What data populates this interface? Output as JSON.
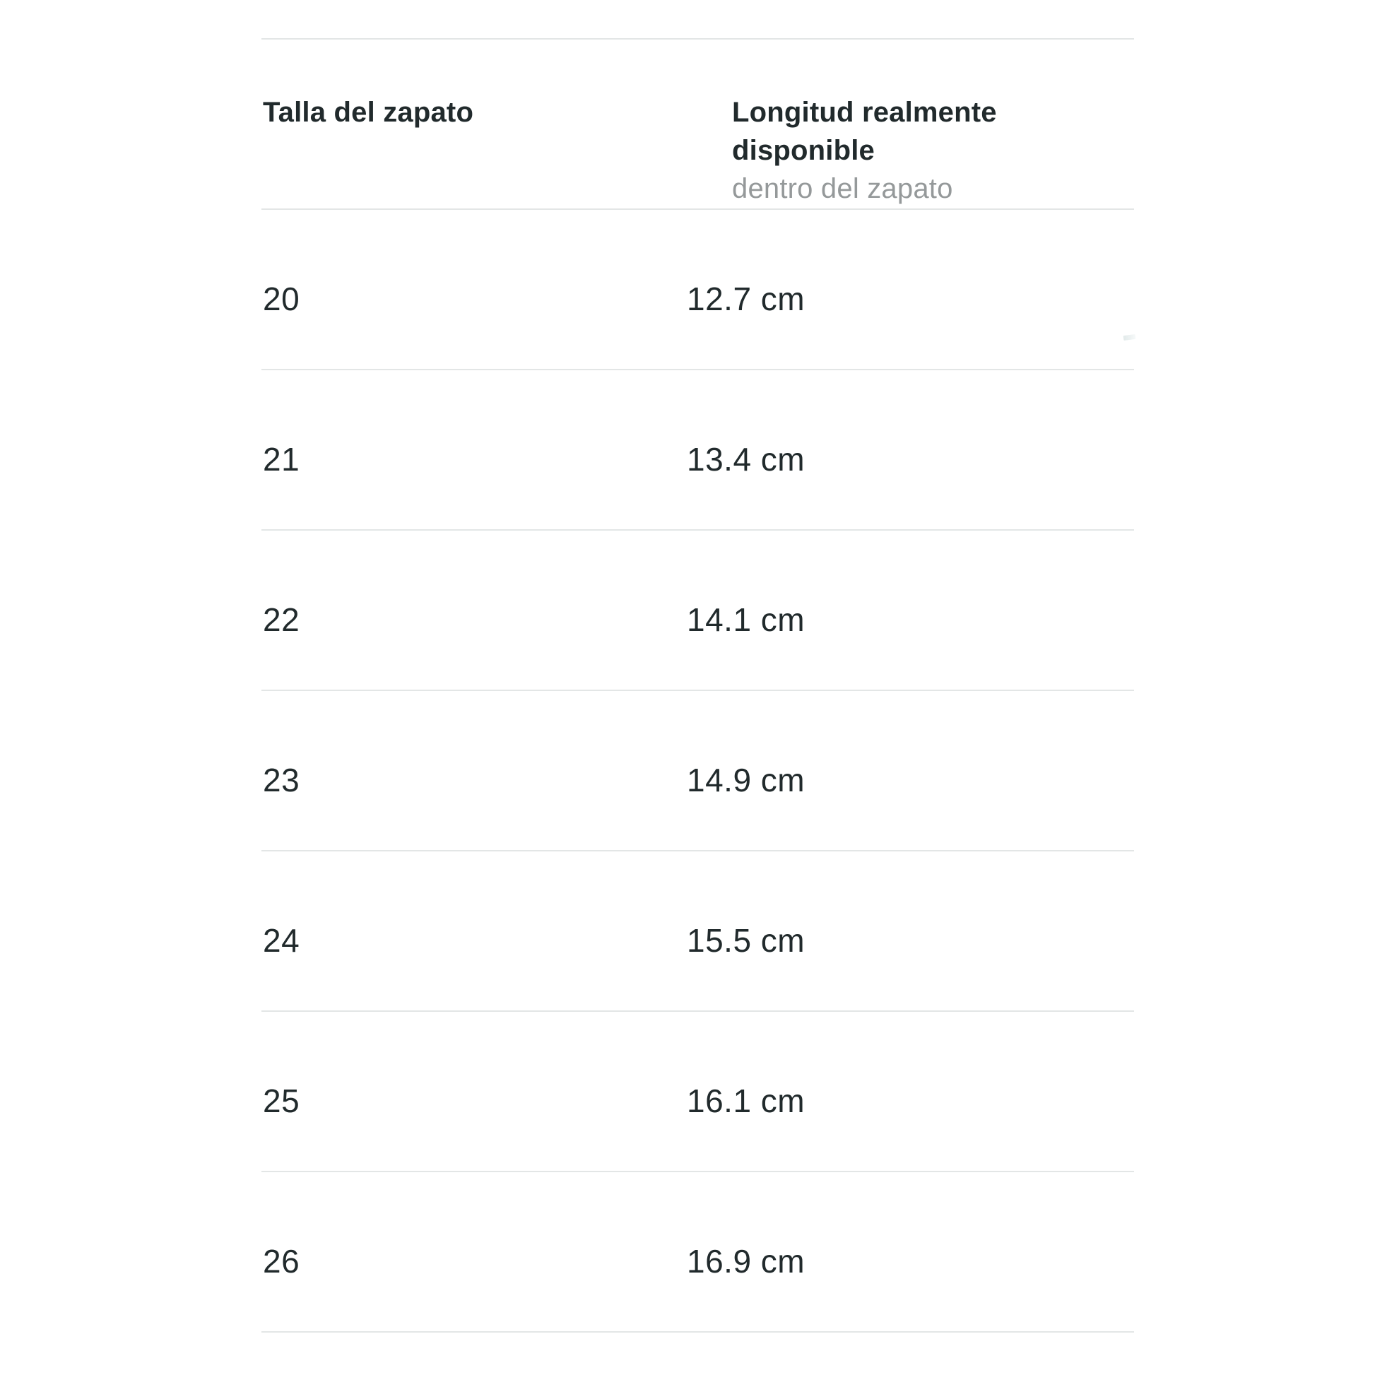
{
  "table": {
    "columns": [
      {
        "label": "Talla del zapato",
        "sublabel": ""
      },
      {
        "label": "Longitud realmente disponible",
        "sublabel": "dentro del zapato"
      }
    ],
    "rows": [
      {
        "size": "20",
        "length": "12.7 cm"
      },
      {
        "size": "21",
        "length": "13.4 cm"
      },
      {
        "size": "22",
        "length": "14.1 cm"
      },
      {
        "size": "23",
        "length": "14.9 cm"
      },
      {
        "size": "24",
        "length": "15.5 cm"
      },
      {
        "size": "25",
        "length": "16.1 cm"
      },
      {
        "size": "26",
        "length": "16.9 cm"
      }
    ],
    "colors": {
      "text_dark": "#212a2c",
      "text_gray": "#95999a",
      "divider": "#e3e6e6",
      "background": "#ffffff"
    }
  }
}
